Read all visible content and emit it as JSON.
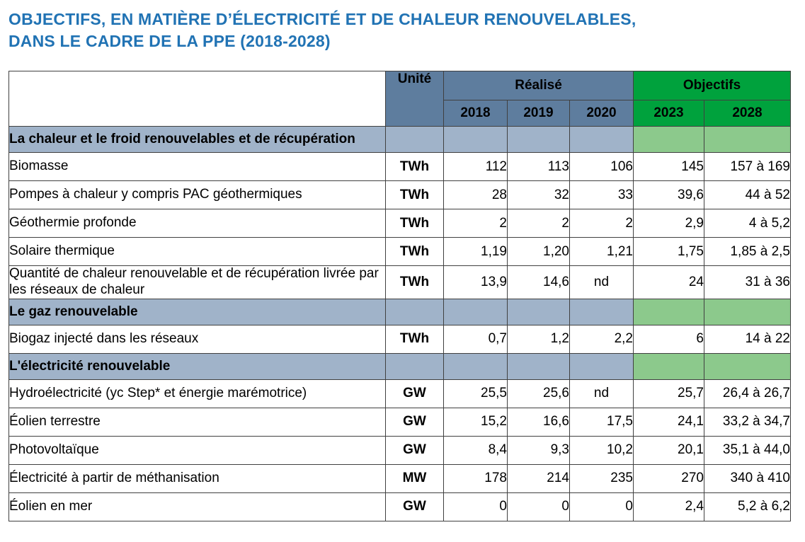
{
  "title": {
    "line1": "OBJECTIFS, EN MATIÈRE D’ÉLECTRICITÉ ET DE CHALEUR RENOUVELABLES,",
    "line2": "DANS LE CADRE DE LA PPE (2018-2028)"
  },
  "colors": {
    "title_blue": "#2173B4",
    "header_steel_blue": "#5E7D9E",
    "header_green": "#00A23D",
    "section_steel_blue": "#A0B3C9",
    "section_green": "#8CC98C",
    "border": "#404040"
  },
  "table": {
    "header": {
      "unit_label": "Unité",
      "realise_label": "Réalisé",
      "objectifs_label": "Objectifs",
      "years": [
        "2018",
        "2019",
        "2020"
      ],
      "objective_years": [
        "2023",
        "2028"
      ]
    },
    "rows": [
      {
        "type": "section",
        "label": "La chaleur et le froid renouvelables et de récupération"
      },
      {
        "type": "data",
        "label": "Biomasse",
        "unit": "TWh",
        "values": [
          "112",
          "113",
          "106",
          "145",
          "157 à 169"
        ]
      },
      {
        "type": "data",
        "label": "Pompes à chaleur y compris PAC géothermiques",
        "unit": "TWh",
        "values": [
          "28",
          "32",
          "33",
          "39,6",
          "44 à 52"
        ]
      },
      {
        "type": "data",
        "label": "Géothermie profonde",
        "unit": "TWh",
        "values": [
          "2",
          "2",
          "2",
          "2,9",
          "4 à 5,2"
        ]
      },
      {
        "type": "data",
        "label": "Solaire thermique",
        "unit": "TWh",
        "values": [
          "1,19",
          "1,20",
          "1,21",
          "1,75",
          "1,85 à 2,5"
        ]
      },
      {
        "type": "data",
        "label": "Quantité de chaleur renouvelable et de récupération livrée par les réseaux de chaleur",
        "unit": "TWh",
        "values": [
          "13,9",
          "14,6",
          "nd",
          "24",
          "31 à 36"
        ]
      },
      {
        "type": "section",
        "label": "Le gaz renouvelable"
      },
      {
        "type": "data",
        "label": "Biogaz injecté dans les réseaux",
        "unit": "TWh",
        "values": [
          "0,7",
          "1,2",
          "2,2",
          "6",
          "14 à 22"
        ]
      },
      {
        "type": "section",
        "label": "L'électricité renouvelable"
      },
      {
        "type": "data",
        "label": "Hydroélectricité (yc Step* et énergie marémotrice)",
        "unit": "GW",
        "values": [
          "25,5",
          "25,6",
          "nd",
          "25,7",
          "26,4 à 26,7"
        ]
      },
      {
        "type": "data",
        "label": "Éolien terrestre",
        "unit": "GW",
        "values": [
          "15,2",
          "16,6",
          "17,5",
          "24,1",
          "33,2 à 34,7"
        ]
      },
      {
        "type": "data",
        "label": "Photovoltaïque",
        "unit": "GW",
        "values": [
          "8,4",
          "9,3",
          "10,2",
          "20,1",
          "35,1 à 44,0"
        ]
      },
      {
        "type": "data",
        "label": "Électricité à partir de méthanisation",
        "unit": "MW",
        "values": [
          "178",
          "214",
          "235",
          "270",
          "340 à 410"
        ]
      },
      {
        "type": "data",
        "label": "Éolien en mer",
        "unit": "GW",
        "values": [
          "0",
          "0",
          "0",
          "2,4",
          "5,2 à 6,2"
        ]
      }
    ]
  }
}
